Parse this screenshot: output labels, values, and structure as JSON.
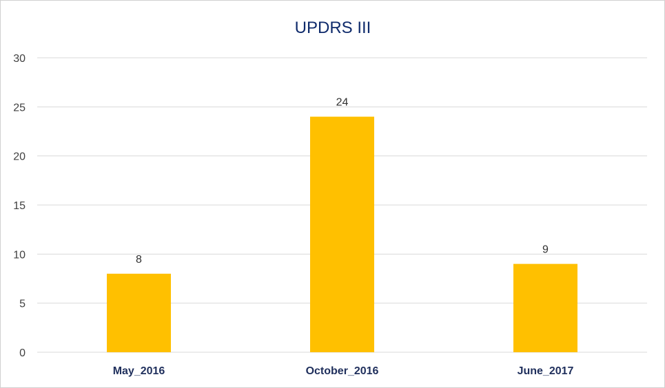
{
  "chart_data": {
    "type": "bar",
    "title": "UPDRS III",
    "xlabel": "",
    "ylabel": "",
    "categories": [
      "May_2016",
      "October_2016",
      "June_2017"
    ],
    "values": [
      8,
      24,
      9
    ],
    "ylim": [
      0,
      30
    ],
    "yticks": [
      0,
      5,
      10,
      15,
      20,
      25,
      30
    ],
    "grid": true,
    "legend": "none",
    "colors": {
      "bar": "#ffc000",
      "grid": "#d9d9d9",
      "title": "#0e2a6b",
      "category_label": "#1f2f5c"
    }
  }
}
